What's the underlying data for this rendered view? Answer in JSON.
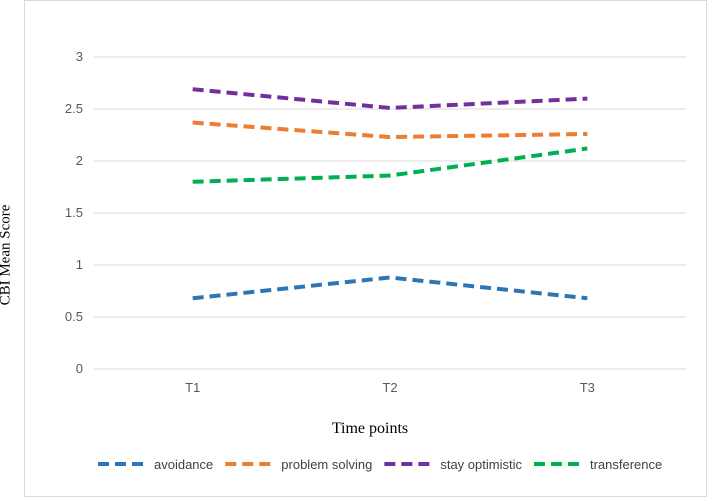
{
  "chart_data": {
    "type": "line",
    "title": "",
    "xlabel": "Time points",
    "ylabel": "CBI Mean Score",
    "categories": [
      "T1",
      "T2",
      "T3"
    ],
    "ylim": [
      0,
      3
    ],
    "yticks": [
      "0",
      "0.5",
      "1",
      "1.5",
      "2",
      "2.5",
      "3"
    ],
    "ytick_values": [
      0,
      0.5,
      1,
      1.5,
      2,
      2.5,
      3
    ],
    "grid": true,
    "legend_position": "bottom",
    "series": [
      {
        "name": "avoidance",
        "values": [
          0.68,
          0.88,
          0.68
        ],
        "color": "#2e75b6"
      },
      {
        "name": "problem solving",
        "values": [
          2.37,
          2.23,
          2.26
        ],
        "color": "#ed7d31"
      },
      {
        "name": "stay optimistic",
        "values": [
          2.69,
          2.51,
          2.6
        ],
        "color": "#7030a0"
      },
      {
        "name": "transference",
        "values": [
          1.8,
          1.86,
          2.12
        ],
        "color": "#00b050"
      }
    ]
  }
}
